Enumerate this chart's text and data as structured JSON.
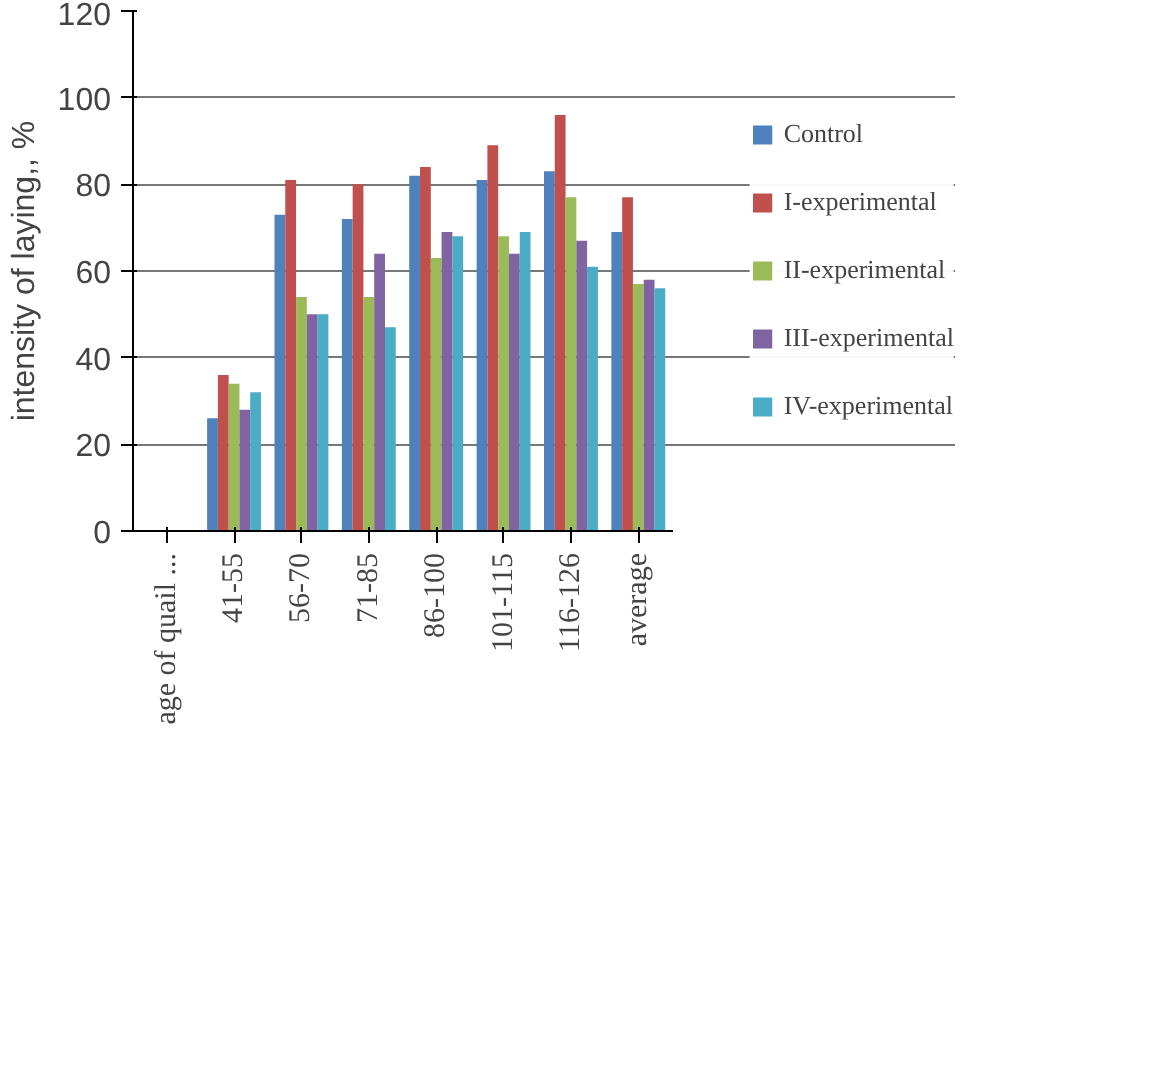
{
  "chart_data": {
    "type": "bar",
    "ylabel": "intensity of laying,, %",
    "categories": [
      "age of quail ...",
      "41-55",
      "56-70",
      "71-85",
      "86-100",
      "101-115",
      "116-126",
      "average"
    ],
    "series": [
      {
        "name": "Control",
        "color": "#4f81bd",
        "values": [
          null,
          26,
          73,
          72,
          82,
          81,
          83,
          69
        ]
      },
      {
        "name": "I-experimental",
        "color": "#c0504d",
        "values": [
          null,
          36,
          81,
          80,
          84,
          89,
          96,
          77
        ]
      },
      {
        "name": "II-experimental",
        "color": "#9bbb59",
        "values": [
          null,
          34,
          54,
          54,
          63,
          68,
          77,
          57
        ]
      },
      {
        "name": "III-experimental",
        "color": "#8064a2",
        "values": [
          null,
          28,
          50,
          64,
          69,
          64,
          67,
          58
        ]
      },
      {
        "name": "IV-experimental",
        "color": "#4bacc6",
        "values": [
          null,
          32,
          50,
          47,
          68,
          69,
          61,
          56
        ]
      }
    ],
    "ylim": [
      0,
      120
    ],
    "yticks": [
      0,
      20,
      40,
      60,
      80,
      100,
      120
    ],
    "grid": "y",
    "legend": "right"
  }
}
